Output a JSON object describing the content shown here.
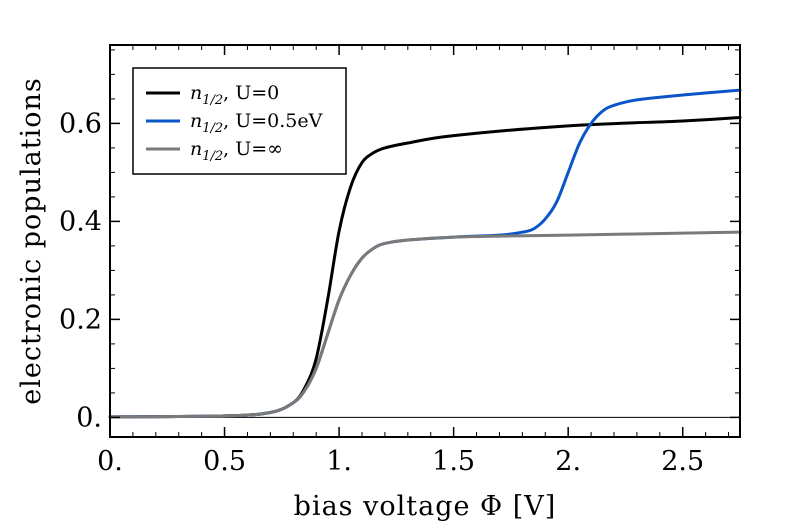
{
  "chart_data": {
    "type": "line",
    "title": "",
    "xlabel": "bias voltage Φ [V]",
    "ylabel": "electronic populations",
    "xlim": [
      0,
      2.75
    ],
    "ylim": [
      -0.04,
      0.76
    ],
    "x_ticks": [
      0,
      0.5,
      1,
      1.5,
      2,
      2.5
    ],
    "x_tick_labels": [
      "0.",
      "0.5",
      "1.",
      "1.5",
      "2.",
      "2.5"
    ],
    "y_ticks": [
      0,
      0.2,
      0.4,
      0.6
    ],
    "y_tick_labels": [
      "0.",
      "0.2",
      "0.4",
      "0.6"
    ],
    "legend_position": "top-left",
    "baseline_y": 0,
    "series": [
      {
        "name": "n_{1/2}, U=0",
        "legend_symbol": "n",
        "legend_sub": "1/2",
        "legend_rest": ", U=0",
        "color": "#000000",
        "x": [
          0,
          0.5,
          0.7,
          0.8,
          0.85,
          0.9,
          0.95,
          1.0,
          1.05,
          1.1,
          1.15,
          1.2,
          1.3,
          1.5,
          2.0,
          2.5,
          2.75
        ],
        "y": [
          0.001,
          0.003,
          0.01,
          0.03,
          0.06,
          0.12,
          0.24,
          0.38,
          0.47,
          0.52,
          0.54,
          0.55,
          0.56,
          0.575,
          0.595,
          0.605,
          0.612
        ]
      },
      {
        "name": "n_{1/2}, U=0.5eV",
        "legend_symbol": "n",
        "legend_sub": "1/2",
        "legend_rest": ", U=0.5eV",
        "color": "#0a55c8",
        "x": [
          0,
          0.5,
          0.7,
          0.8,
          0.85,
          0.9,
          0.95,
          1.0,
          1.05,
          1.1,
          1.15,
          1.2,
          1.3,
          1.5,
          1.7,
          1.8,
          1.85,
          1.9,
          1.95,
          2.0,
          2.05,
          2.1,
          2.15,
          2.2,
          2.3,
          2.5,
          2.75
        ],
        "y": [
          0.001,
          0.003,
          0.01,
          0.03,
          0.055,
          0.1,
          0.17,
          0.24,
          0.29,
          0.325,
          0.345,
          0.355,
          0.362,
          0.368,
          0.372,
          0.378,
          0.385,
          0.405,
          0.44,
          0.5,
          0.56,
          0.6,
          0.625,
          0.637,
          0.648,
          0.658,
          0.668
        ]
      },
      {
        "name": "n_{1/2}, U=∞",
        "legend_symbol": "n",
        "legend_sub": "1/2",
        "legend_rest": ", U=∞",
        "color": "#7a7a7a",
        "x": [
          0,
          0.5,
          0.7,
          0.8,
          0.85,
          0.9,
          0.95,
          1.0,
          1.05,
          1.1,
          1.15,
          1.2,
          1.3,
          1.5,
          1.7,
          2.0,
          2.5,
          2.75
        ],
        "y": [
          0.001,
          0.003,
          0.01,
          0.03,
          0.055,
          0.1,
          0.17,
          0.24,
          0.29,
          0.325,
          0.345,
          0.355,
          0.362,
          0.368,
          0.37,
          0.372,
          0.376,
          0.378
        ]
      }
    ]
  }
}
